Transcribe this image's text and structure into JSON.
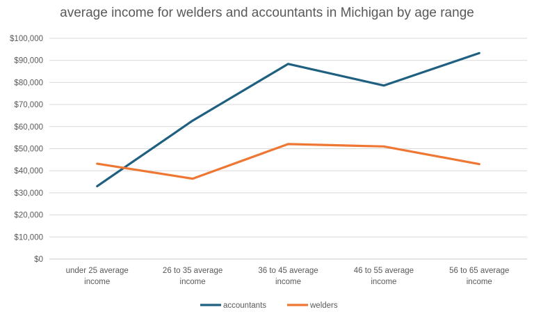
{
  "chart_data": {
    "type": "line",
    "title": "average income for welders and accountants in Michigan by age range",
    "categories": [
      "under 25 average income",
      "26 to 35 average income",
      "36 to 45 average income",
      "46 to 55 average income",
      "56 to 65 average income"
    ],
    "category_lines": [
      [
        "under 25 average",
        "income"
      ],
      [
        "26 to 35 average",
        "income"
      ],
      [
        "36 to 45 average",
        "income"
      ],
      [
        "46 to 55 average",
        "income"
      ],
      [
        "56 to 65 average",
        "income"
      ]
    ],
    "ylim": [
      0,
      100000
    ],
    "yticks": [
      "$0",
      "$10,000",
      "$20,000",
      "$30,000",
      "$40,000",
      "$50,000",
      "$60,000",
      "$70,000",
      "$80,000",
      "$90,000",
      "$100,000"
    ],
    "grid": true,
    "legend": "bottom",
    "series": [
      {
        "name": "accountants",
        "color": "#1f5f7f",
        "values": [
          33000,
          62700,
          88400,
          78600,
          93300
        ]
      },
      {
        "name": "welders",
        "color": "#ee7733",
        "values": [
          43200,
          36400,
          52100,
          51000,
          43000
        ]
      }
    ]
  }
}
